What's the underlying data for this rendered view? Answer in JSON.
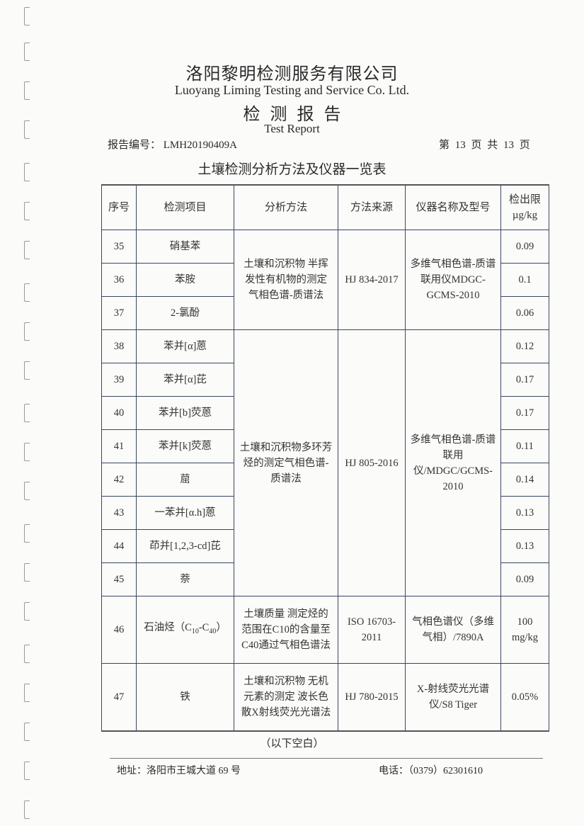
{
  "header": {
    "company_cn": "洛阳黎明检测服务有限公司",
    "company_en": "Luoyang Liming Testing and Service Co. Ltd.",
    "report_cn": "检测报告",
    "report_en": "Test Report",
    "report_no_label": "报告编号：",
    "report_no": "LMH20190409A",
    "page_info": "第 13 页 共 13 页"
  },
  "table": {
    "title": "土壤检测分析方法及仪器一览表",
    "columns": [
      "序号",
      "检测项目",
      "分析方法",
      "方法来源",
      "仪器名称及型号",
      "检出限",
      "µg/kg"
    ],
    "groups": [
      {
        "method": "土壤和沉积物 半挥发性有机物的测定 气相色谱-质谱法",
        "source": "HJ 834-2017",
        "instrument": "多维气相色谱-质谱联用仪MDGC-GCMS-2010",
        "rows": [
          {
            "no": "35",
            "item": "硝基苯",
            "limit": "0.09"
          },
          {
            "no": "36",
            "item": "苯胺",
            "limit": "0.1"
          },
          {
            "no": "37",
            "item": "2-氯酚",
            "limit": "0.06"
          }
        ]
      },
      {
        "method": "土壤和沉积物多环芳烃的测定气相色谱-质谱法",
        "source": "HJ 805-2016",
        "instrument": "多维气相色谱-质谱联用仪/MDGC/GCMS-2010",
        "rows": [
          {
            "no": "38",
            "item": "苯并[α]蒽",
            "limit": "0.12"
          },
          {
            "no": "39",
            "item": "苯并[α]芘",
            "limit": "0.17"
          },
          {
            "no": "40",
            "item": "苯并[b]荧蒽",
            "limit": "0.17"
          },
          {
            "no": "41",
            "item": "苯并[k]荧蒽",
            "limit": "0.11"
          },
          {
            "no": "42",
            "item": "䓛",
            "limit": "0.14"
          },
          {
            "no": "43",
            "item": "一苯并[α.h]蒽",
            "limit": "0.13"
          },
          {
            "no": "44",
            "item": "茚并[1,2,3-cd]芘",
            "limit": "0.13"
          },
          {
            "no": "45",
            "item": "萘",
            "limit": "0.09"
          }
        ]
      }
    ],
    "row46": {
      "no": "46",
      "item_main": "石油烃（C",
      "item_sub1": "10",
      "item_mid": "-C",
      "item_sub2": "40",
      "item_end": "）",
      "method": "土壤质量 测定烃的范围在C10的含量至C40通过气相色谱法",
      "source": "ISO 16703-2011",
      "instrument": "气相色谱仪（多维气相）/7890A",
      "limit": "100 mg/kg"
    },
    "row47": {
      "no": "47",
      "item": "铁",
      "method": "土壤和沉积物 无机元素的测定 波长色散X射线荧光光谱法",
      "source": "HJ 780-2015",
      "instrument": "X-射线荧光光谱仪/S8 Tiger",
      "limit": "0.05%"
    }
  },
  "blank_note": "（以下空白）",
  "footer": {
    "address": "地址：洛阳市王城大道 69 号",
    "phone": "电话：（0379）62301610"
  }
}
